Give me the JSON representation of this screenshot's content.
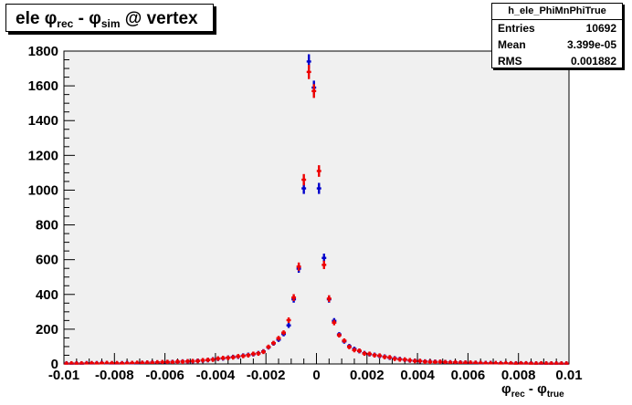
{
  "title": {
    "prefix": "ele ",
    "phi1": "φ",
    "sub1": "rec",
    "mid": " - ",
    "phi2": "φ",
    "sub2": "sim",
    "suffix": " @ vertex"
  },
  "stats": {
    "name": "h_ele_PhiMnPhiTrue",
    "rows": [
      {
        "label": "Entries",
        "value": "10692"
      },
      {
        "label": "Mean",
        "value": "3.399e-05"
      },
      {
        "label": "RMS",
        "value": "0.001882"
      }
    ]
  },
  "xaxis_title": {
    "phi1": "φ",
    "sub1": "rec",
    "mid": " - ",
    "phi2": "φ",
    "sub2": "true"
  },
  "colors": {
    "frame_bg": "#f0f0f0",
    "series_blue": "#0000cc",
    "series_red": "#ee0000"
  },
  "chart_data": {
    "type": "scatter",
    "xlim": [
      -0.01,
      0.01
    ],
    "ylim": [
      0,
      1800
    ],
    "xticks": [
      -0.01,
      -0.008,
      -0.006,
      -0.004,
      -0.002,
      0,
      0.002,
      0.004,
      0.006,
      0.008,
      0.01
    ],
    "xtick_labels": [
      "-0.01",
      "-0.008",
      "-0.006",
      "-0.004",
      "-0.002",
      "0",
      "0.002",
      "0.004",
      "0.006",
      "0.008",
      "0.01"
    ],
    "yticks": [
      0,
      200,
      400,
      600,
      800,
      1000,
      1200,
      1400,
      1600,
      1800
    ],
    "ytick_labels": [
      "0",
      "200",
      "400",
      "600",
      "800",
      "1000",
      "1200",
      "1400",
      "1600",
      "1800"
    ],
    "grid": false,
    "bin_width": 0.0002,
    "x": [
      -0.0099,
      -0.0097,
      -0.0095,
      -0.0093,
      -0.0091,
      -0.0089,
      -0.0087,
      -0.0085,
      -0.0083,
      -0.0081,
      -0.0079,
      -0.0077,
      -0.0075,
      -0.0073,
      -0.0071,
      -0.0069,
      -0.0067,
      -0.0065,
      -0.0063,
      -0.0061,
      -0.0059,
      -0.0057,
      -0.0055,
      -0.0053,
      -0.0051,
      -0.0049,
      -0.0047,
      -0.0045,
      -0.0043,
      -0.0041,
      -0.0039,
      -0.0037,
      -0.0035,
      -0.0033,
      -0.0031,
      -0.0029,
      -0.0027,
      -0.0025,
      -0.0023,
      -0.0021,
      -0.0019,
      -0.0017,
      -0.0015,
      -0.0013,
      -0.0011,
      -0.0009,
      -0.0007,
      -0.0005,
      -0.0003,
      -0.0001,
      0.0001,
      0.0003,
      0.0005,
      0.0007,
      0.0009,
      0.0011,
      0.0013,
      0.0015,
      0.0017,
      0.0019,
      0.0021,
      0.0023,
      0.0025,
      0.0027,
      0.0029,
      0.0031,
      0.0033,
      0.0035,
      0.0037,
      0.0039,
      0.0041,
      0.0043,
      0.0045,
      0.0047,
      0.0049,
      0.0051,
      0.0053,
      0.0055,
      0.0057,
      0.0059,
      0.0061,
      0.0063,
      0.0065,
      0.0067,
      0.0069,
      0.0071,
      0.0073,
      0.0075,
      0.0077,
      0.0079,
      0.0081,
      0.0083,
      0.0085,
      0.0087,
      0.0089,
      0.0091,
      0.0093,
      0.0095,
      0.0097,
      0.0099
    ],
    "series": [
      {
        "values": [
          3,
          2,
          3,
          2,
          4,
          3,
          4,
          5,
          4,
          3,
          3,
          4,
          5,
          4,
          5,
          6,
          7,
          8,
          8,
          9,
          10,
          11,
          12,
          14,
          14,
          15,
          18,
          20,
          22,
          26,
          30,
          32,
          36,
          40,
          42,
          48,
          52,
          56,
          62,
          72,
          96,
          118,
          140,
          172,
          222,
          372,
          548,
          1010,
          1740,
          1590,
          1010,
          610,
          372,
          248,
          170,
          130,
          102,
          86,
          74,
          62,
          56,
          52,
          46,
          42,
          36,
          32,
          28,
          24,
          20,
          18,
          16,
          14,
          13,
          12,
          11,
          10,
          9,
          8,
          8,
          7,
          6,
          6,
          5,
          5,
          5,
          4,
          4,
          4,
          3,
          3,
          3,
          3,
          3,
          2,
          2,
          2,
          2,
          2,
          2,
          2
        ]
      },
      {
        "values": [
          2,
          3,
          2,
          3,
          3,
          4,
          3,
          4,
          5,
          4,
          4,
          3,
          4,
          5,
          6,
          6,
          7,
          7,
          9,
          10,
          11,
          10,
          13,
          13,
          15,
          16,
          17,
          21,
          23,
          25,
          31,
          34,
          35,
          38,
          44,
          46,
          50,
          58,
          60,
          70,
          98,
          120,
          148,
          180,
          252,
          382,
          560,
          1060,
          1680,
          1570,
          1110,
          570,
          376,
          238,
          165,
          134,
          98,
          80,
          76,
          60,
          58,
          50,
          48,
          40,
          38,
          30,
          26,
          25,
          21,
          17,
          17,
          13,
          12,
          11,
          12,
          10,
          8,
          9,
          7,
          7,
          7,
          6,
          5,
          4,
          4,
          4,
          3,
          4,
          3,
          2,
          3,
          3,
          2,
          2,
          3,
          2,
          2,
          2,
          2,
          2
        ]
      }
    ]
  }
}
